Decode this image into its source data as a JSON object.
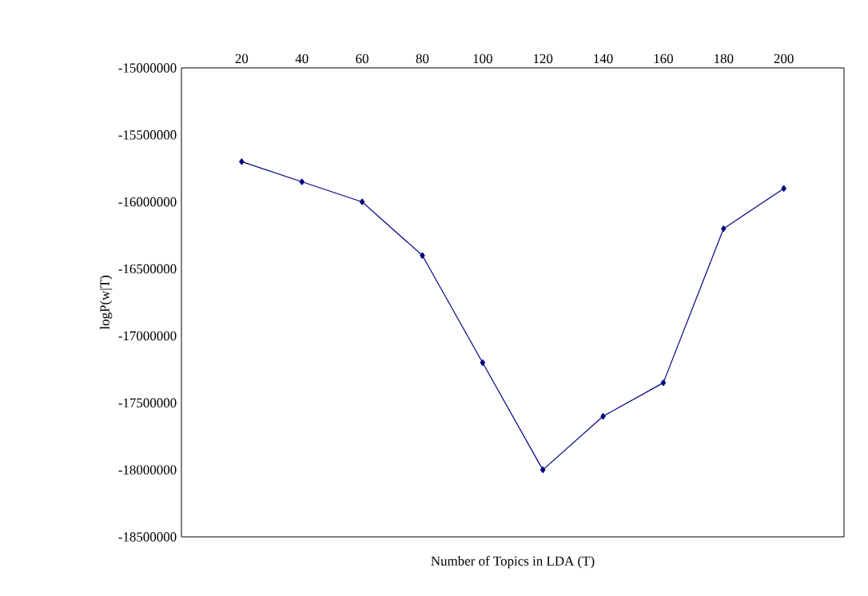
{
  "chart_data": {
    "type": "line",
    "xlabel": "Number of Topics in LDA (T)",
    "ylabel": "logP(w|T)",
    "x": [
      20,
      40,
      60,
      80,
      100,
      120,
      140,
      160,
      180,
      200
    ],
    "series": [
      {
        "color": "#000080",
        "values": [
          -15700000,
          -15850000,
          -16000000,
          -16400000,
          -17200000,
          -18000000,
          -17600000,
          -17350000,
          -16200000,
          -15900000
        ]
      }
    ],
    "xlim": [
      0,
      220
    ],
    "xticks": [
      20,
      40,
      60,
      80,
      100,
      120,
      140,
      160,
      180,
      200
    ],
    "ylim": [
      -18500000,
      -15000000
    ],
    "yticks": [
      -18500000,
      -18000000,
      -17500000,
      -17000000,
      -16500000,
      -16000000,
      -15500000,
      -15000000
    ],
    "marker": "diamond",
    "line_style": "solid",
    "grid": false
  }
}
